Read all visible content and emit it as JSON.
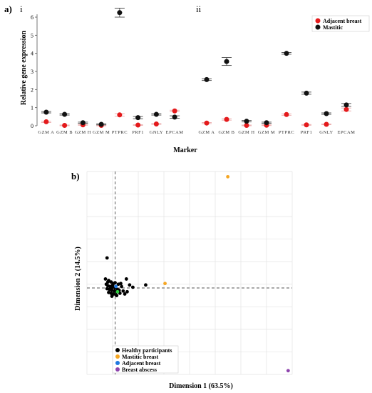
{
  "figure": {
    "panel_a_label": "a)",
    "panel_b_label": "b)"
  },
  "chart_data": [
    {
      "id": "a-i",
      "type": "scatter",
      "panel": "a",
      "subpanel": "i",
      "categories": [
        "GZM A",
        "GZM B",
        "GZM H",
        "GZM M",
        "PTPRC",
        "PRF1",
        "GNLY",
        "EPCAM"
      ],
      "ylabel": "Relative gene expression",
      "xlabel": "Marker",
      "ylim": [
        0,
        6
      ],
      "yticks": [
        0,
        1,
        2,
        3,
        4,
        5,
        6
      ],
      "series": [
        {
          "name": "Adjacent breast",
          "color": "#e41a1c",
          "values": [
            0.22,
            0.02,
            0.05,
            0.02,
            0.6,
            0.04,
            0.1,
            0.82
          ],
          "errors": [
            0.04,
            0.02,
            0.02,
            0.02,
            0.07,
            0.02,
            0.03,
            0.04
          ]
        },
        {
          "name": "Mastitic",
          "color": "#111111",
          "values": [
            0.75,
            0.63,
            0.17,
            0.08,
            6.25,
            0.45,
            0.63,
            0.48
          ],
          "errors": [
            0.04,
            0.04,
            0.03,
            0.03,
            0.25,
            0.06,
            0.04,
            0.07
          ]
        }
      ]
    },
    {
      "id": "a-ii",
      "type": "scatter",
      "panel": "a",
      "subpanel": "ii",
      "categories": [
        "GZM A",
        "GZM B",
        "GZM H",
        "GZM M",
        "PTPRC",
        "PRF1",
        "GNLY",
        "EPCAM"
      ],
      "ylim": [
        0,
        6
      ],
      "series": [
        {
          "name": "Adjacent breast",
          "color": "#e41a1c",
          "values": [
            0.15,
            0.35,
            0.02,
            0.03,
            0.62,
            0.05,
            0.08,
            0.9
          ],
          "errors": [
            0.03,
            0.04,
            0.02,
            0.02,
            0.04,
            0.02,
            0.02,
            0.08
          ]
        },
        {
          "name": "Mastitic",
          "color": "#111111",
          "values": [
            2.55,
            3.55,
            0.25,
            0.17,
            4.0,
            1.8,
            0.67,
            1.15
          ],
          "errors": [
            0.05,
            0.22,
            0.04,
            0.03,
            0.05,
            0.06,
            0.04,
            0.08
          ]
        }
      ],
      "legend": {
        "placement": "top-right",
        "entries": [
          "Adjacent breast",
          "Mastitic"
        ]
      }
    },
    {
      "id": "b",
      "type": "scatter",
      "panel": "b",
      "xlabel": "Dimension 1 (63.5%)",
      "ylabel": "Dimension 2 (14.5%)",
      "xlim": [
        -0.35,
        2.2
      ],
      "ylim": [
        -1.15,
        1.55
      ],
      "grid": true,
      "reference_lines": {
        "x": 0,
        "y": 0
      },
      "legend": {
        "placement": "bottom-left"
      },
      "series": [
        {
          "name": "Healthy participants",
          "color": "#000000",
          "points": [
            [
              -0.1,
              0.4
            ],
            [
              -0.12,
              0.12
            ],
            [
              -0.08,
              0.1
            ],
            [
              -0.05,
              0.08
            ],
            [
              -0.02,
              0.06
            ],
            [
              -0.11,
              0.05
            ],
            [
              -0.09,
              0.03
            ],
            [
              -0.06,
              0.02
            ],
            [
              -0.03,
              0.01
            ],
            [
              0.0,
              0.0
            ],
            [
              -0.1,
              -0.01
            ],
            [
              -0.07,
              -0.02
            ],
            [
              -0.04,
              -0.03
            ],
            [
              -0.01,
              -0.04
            ],
            [
              0.02,
              -0.05
            ],
            [
              -0.08,
              -0.06
            ],
            [
              -0.05,
              -0.07
            ],
            [
              -0.02,
              -0.08
            ],
            [
              0.01,
              -0.09
            ],
            [
              -0.06,
              0.0
            ],
            [
              -0.03,
              0.04
            ],
            [
              0.03,
              -0.02
            ],
            [
              0.05,
              -0.03
            ],
            [
              0.08,
              0.02
            ],
            [
              0.1,
              -0.04
            ],
            [
              0.14,
              0.12
            ],
            [
              0.18,
              0.04
            ],
            [
              0.22,
              0.01
            ],
            [
              0.15,
              -0.05
            ],
            [
              0.12,
              -0.08
            ],
            [
              0.38,
              0.04
            ],
            [
              0.02,
              -0.1
            ],
            [
              -0.04,
              -0.11
            ],
            [
              0.04,
              0.05
            ],
            [
              -0.09,
              0.08
            ],
            [
              0.06,
              -0.07
            ],
            [
              0.0,
              0.07
            ],
            [
              0.07,
              0.06
            ]
          ]
        },
        {
          "name": "Mastitic breast",
          "color": "#f5a623",
          "points": [
            [
              0.62,
              0.06
            ],
            [
              1.4,
              1.48
            ]
          ]
        },
        {
          "name": "Adjacent breast",
          "color": "#1f78e0",
          "points": [
            [
              0.01,
              0.02
            ]
          ]
        },
        {
          "name": "Breast abscess",
          "color": "#8e44ad",
          "points": [
            [
              2.15,
              -1.1
            ]
          ]
        },
        {
          "name": "",
          "color": "#2ecc40",
          "points": [
            [
              0.03,
              -0.05
            ]
          ]
        }
      ],
      "legend_entries": [
        {
          "name": "Healthy participants",
          "color": "#000000"
        },
        {
          "name": "Mastitic breast",
          "color": "#f5a623"
        },
        {
          "name": "Adjacent breast",
          "color": "#1f78e0"
        },
        {
          "name": "Breast abscess",
          "color": "#8e44ad"
        }
      ]
    }
  ]
}
